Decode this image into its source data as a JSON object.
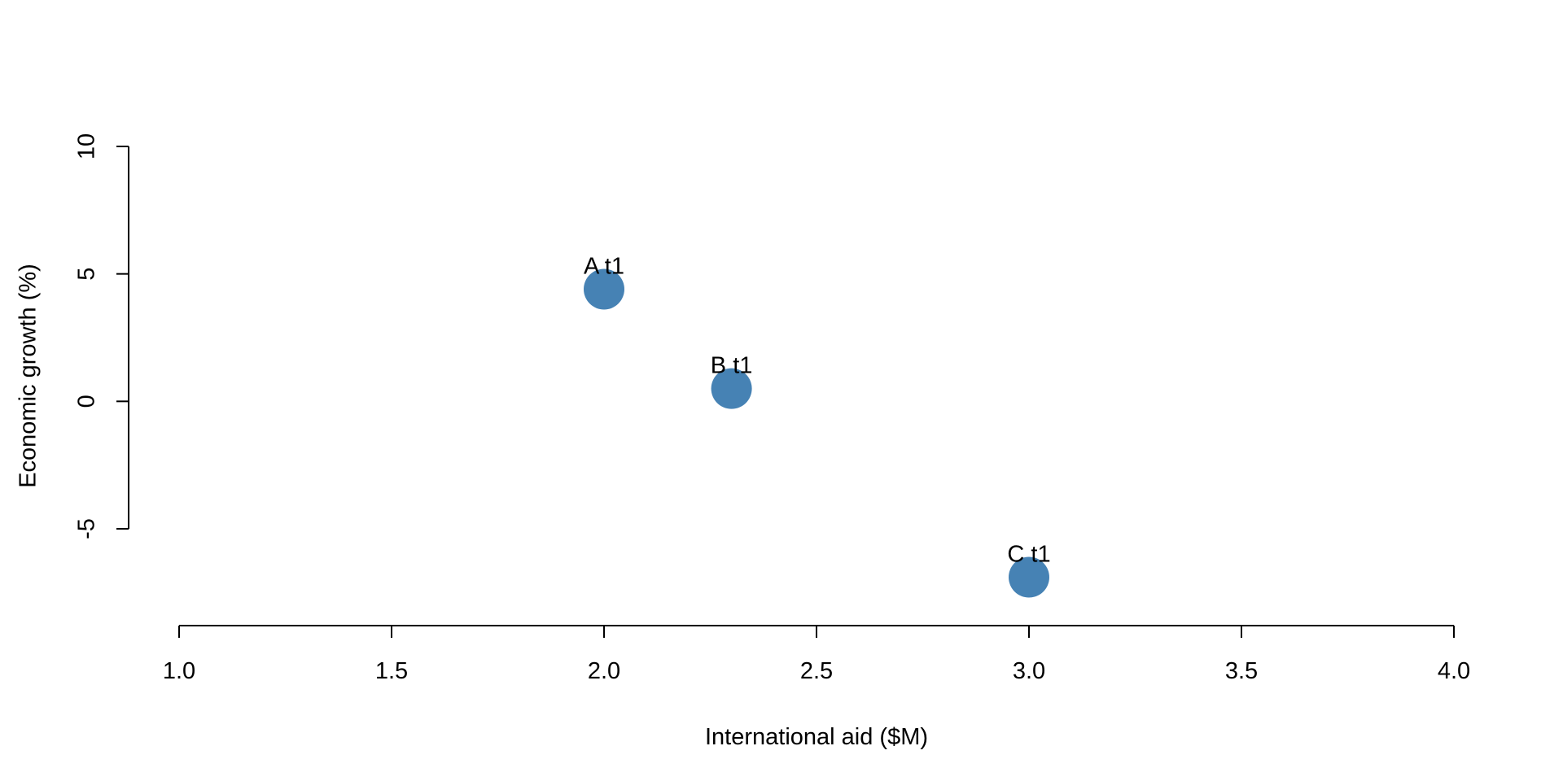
{
  "chart_data": {
    "type": "scatter",
    "title": "",
    "xlabel": "International aid ($M)",
    "ylabel": "Economic growth (%)",
    "xlim": [
      1.0,
      4.0
    ],
    "ylim": [
      -5,
      10
    ],
    "xticks": [
      "1.0",
      "1.5",
      "2.0",
      "2.5",
      "3.0",
      "3.5",
      "4.0"
    ],
    "xtick_values": [
      1.0,
      1.5,
      2.0,
      2.5,
      3.0,
      3.5,
      4.0
    ],
    "yticks": [
      "-5",
      "0",
      "5",
      "10"
    ],
    "ytick_values": [
      -5,
      0,
      5,
      10
    ],
    "grid": false,
    "point_color": "#4682B4",
    "series": [
      {
        "points": [
          {
            "label": "A t1",
            "x": 2.0,
            "y": 4.4
          },
          {
            "label": "B t1",
            "x": 2.3,
            "y": 0.5
          },
          {
            "label": "C t1",
            "x": 3.0,
            "y": -6.9
          }
        ]
      }
    ]
  }
}
